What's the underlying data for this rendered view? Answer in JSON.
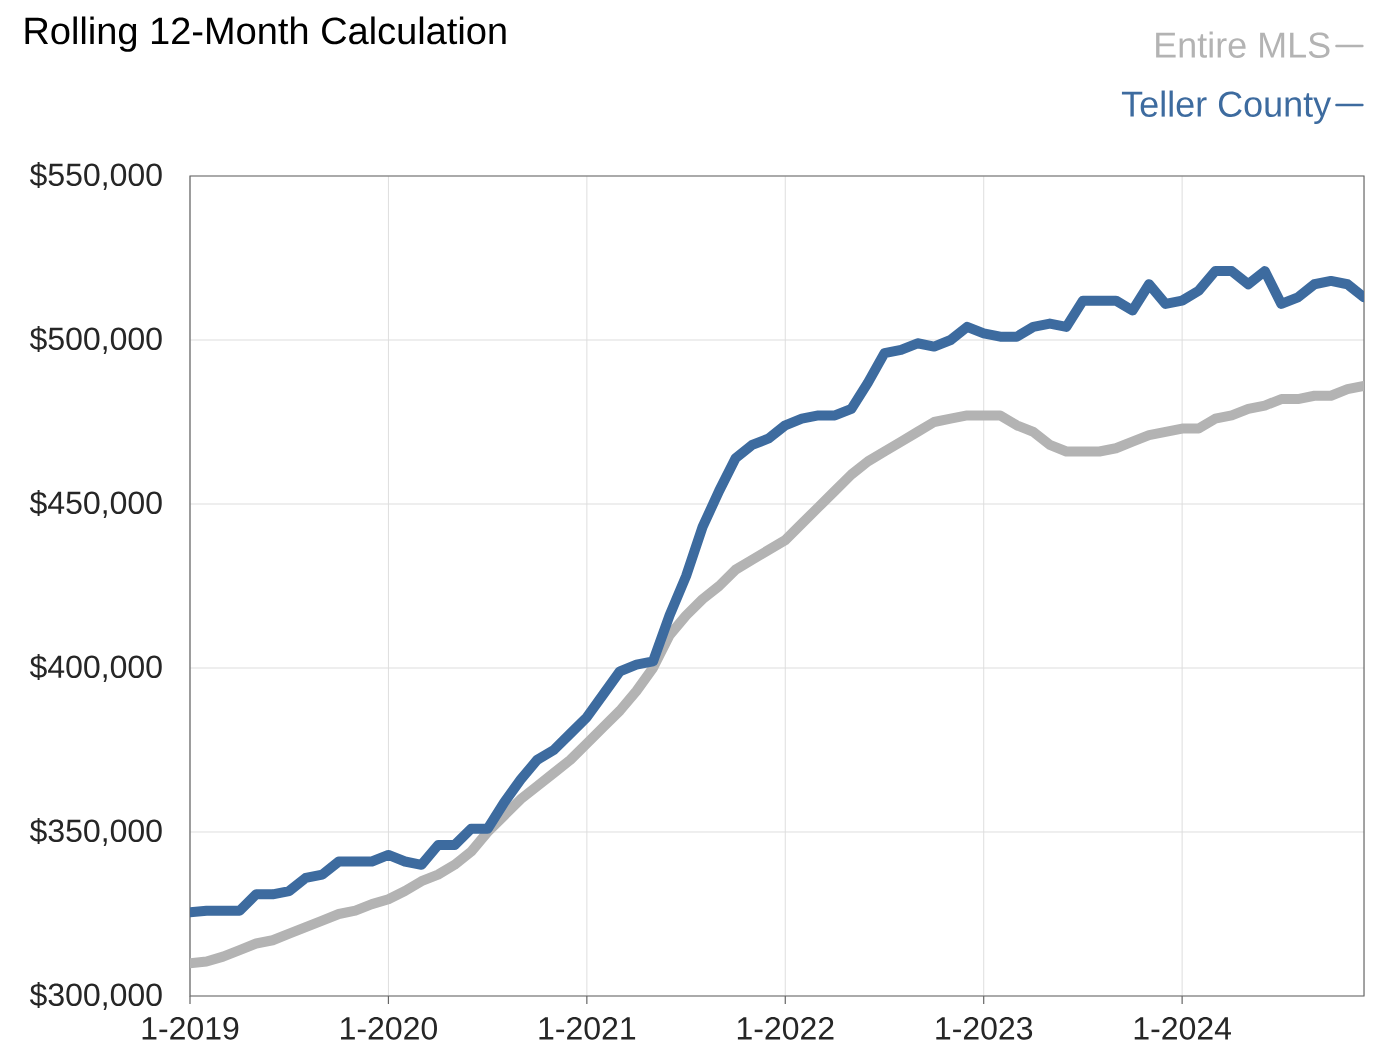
{
  "chart_data": {
    "type": "line",
    "title": "Rolling 12-Month Calculation",
    "x": [
      "2019-01",
      "2019-02",
      "2019-03",
      "2019-04",
      "2019-05",
      "2019-06",
      "2019-07",
      "2019-08",
      "2019-09",
      "2019-10",
      "2019-11",
      "2019-12",
      "2020-01",
      "2020-02",
      "2020-03",
      "2020-04",
      "2020-05",
      "2020-06",
      "2020-07",
      "2020-08",
      "2020-09",
      "2020-10",
      "2020-11",
      "2020-12",
      "2021-01",
      "2021-02",
      "2021-03",
      "2021-04",
      "2021-05",
      "2021-06",
      "2021-07",
      "2021-08",
      "2021-09",
      "2021-10",
      "2021-11",
      "2021-12",
      "2022-01",
      "2022-02",
      "2022-03",
      "2022-04",
      "2022-05",
      "2022-06",
      "2022-07",
      "2022-08",
      "2022-09",
      "2022-10",
      "2022-11",
      "2022-12",
      "2023-01",
      "2023-02",
      "2023-03",
      "2023-04",
      "2023-05",
      "2023-06",
      "2023-07",
      "2023-08",
      "2023-09",
      "2023-10",
      "2023-11",
      "2023-12",
      "2024-01",
      "2024-02",
      "2024-03",
      "2024-04",
      "2024-05",
      "2024-06",
      "2024-07",
      "2024-08",
      "2024-09",
      "2024-10",
      "2024-11",
      "2024-12"
    ],
    "series": [
      {
        "name": "Entire MLS",
        "color": "#b3b3b3",
        "values": [
          310000,
          310500,
          312000,
          314000,
          316000,
          317000,
          319000,
          321000,
          323000,
          325000,
          326000,
          328000,
          329500,
          332000,
          335000,
          337000,
          340000,
          344000,
          350000,
          355000,
          360000,
          364000,
          368000,
          372000,
          377000,
          382000,
          387000,
          393000,
          400000,
          410000,
          416000,
          421000,
          425000,
          430000,
          433000,
          436000,
          439000,
          444000,
          449000,
          454000,
          459000,
          463000,
          466000,
          469000,
          472000,
          475000,
          476000,
          477000,
          477000,
          477000,
          474000,
          472000,
          468000,
          466000,
          466000,
          466000,
          467000,
          469000,
          471000,
          472000,
          473000,
          473000,
          476000,
          477000,
          479000,
          480000,
          482000,
          482000,
          483000,
          483000,
          485000,
          486000
        ]
      },
      {
        "name": "Teller County",
        "color": "#3d6b9f",
        "values": [
          325500,
          326000,
          326000,
          326000,
          331000,
          331000,
          332000,
          336000,
          337000,
          341000,
          341000,
          341000,
          343000,
          341000,
          340000,
          346000,
          346000,
          351000,
          351000,
          359000,
          366000,
          372000,
          375000,
          380000,
          385000,
          392000,
          399000,
          401000,
          402000,
          416000,
          428000,
          443000,
          454000,
          464000,
          468000,
          470000,
          474000,
          476000,
          477000,
          477000,
          479000,
          487000,
          496000,
          497000,
          499000,
          498000,
          500000,
          504000,
          502000,
          501000,
          501000,
          504000,
          505000,
          504000,
          512000,
          512000,
          512000,
          509000,
          517000,
          511000,
          512000,
          515000,
          521000,
          521000,
          517000,
          521000,
          511000,
          513000,
          517000,
          518000,
          517000,
          513000
        ]
      }
    ],
    "xlim": [
      "2019-01",
      "2024-12"
    ],
    "xticks": [
      {
        "value": "2019-01",
        "label": "1-2019"
      },
      {
        "value": "2020-01",
        "label": "1-2020"
      },
      {
        "value": "2021-01",
        "label": "1-2021"
      },
      {
        "value": "2022-01",
        "label": "1-2022"
      },
      {
        "value": "2023-01",
        "label": "1-2023"
      },
      {
        "value": "2024-01",
        "label": "1-2024"
      }
    ],
    "ylim": [
      300000,
      550000
    ],
    "yticks": [
      {
        "value": 300000,
        "label": "$300,000"
      },
      {
        "value": 350000,
        "label": "$350,000"
      },
      {
        "value": 400000,
        "label": "$400,000"
      },
      {
        "value": 450000,
        "label": "$450,000"
      },
      {
        "value": 500000,
        "label": "$500,000"
      },
      {
        "value": 550000,
        "label": "$550,000"
      }
    ],
    "grid": true,
    "legend": "top right"
  }
}
